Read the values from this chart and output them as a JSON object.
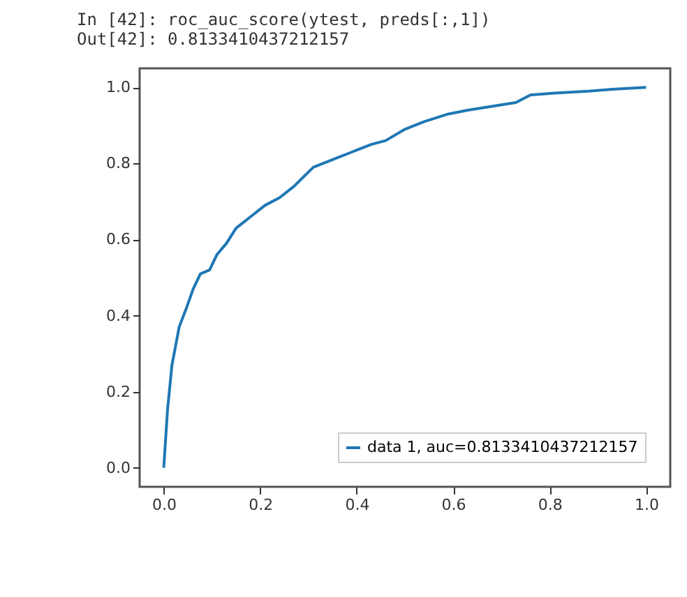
{
  "chart_data": {
    "type": "line",
    "annotations": [
      "In [42]: roc_auc_score(ytest, preds[:,1])",
      "Out[42]: 0.8133410437212157"
    ],
    "series": [
      {
        "name": "data 1, auc=0.8133410437212157",
        "color": "#1f77b4",
        "x": [
          0,
          0.008,
          0.017,
          0.032,
          0.047,
          0.061,
          0.076,
          0.095,
          0.11,
          0.13,
          0.15,
          0.18,
          0.21,
          0.24,
          0.27,
          0.31,
          0.35,
          0.39,
          0.43,
          0.46,
          0.5,
          0.54,
          0.59,
          0.63,
          0.68,
          0.73,
          0.76,
          0.81,
          0.88,
          0.93,
          1.0
        ],
        "values": [
          0,
          0.155,
          0.27,
          0.37,
          0.42,
          0.47,
          0.51,
          0.52,
          0.56,
          0.59,
          0.63,
          0.66,
          0.69,
          0.71,
          0.74,
          0.79,
          0.81,
          0.83,
          0.85,
          0.86,
          0.89,
          0.91,
          0.93,
          0.94,
          0.95,
          0.96,
          0.98,
          0.985,
          0.99,
          0.995,
          1.0
        ]
      }
    ],
    "xlim": [
      -0.05,
      1.05
    ],
    "ylim": [
      -0.05,
      1.05
    ],
    "xticks": [
      {
        "value": 0,
        "label": "0.0"
      },
      {
        "value": 0.2,
        "label": "0.2"
      },
      {
        "value": 0.4,
        "label": "0.4"
      },
      {
        "value": 0.6,
        "label": "0.6"
      },
      {
        "value": 0.8,
        "label": "0.8"
      },
      {
        "value": 1,
        "label": "1.0"
      }
    ],
    "yticks": [
      {
        "value": 0,
        "label": "0.0"
      },
      {
        "value": 0.2,
        "label": "0.2"
      },
      {
        "value": 0.4,
        "label": "0.4"
      },
      {
        "value": 0.6,
        "label": "0.6"
      },
      {
        "value": 0.8,
        "label": "0.8"
      },
      {
        "value": 1,
        "label": "1.0"
      }
    ],
    "legend": "bottom right",
    "grid": false,
    "marker": "none",
    "line_style": "solid"
  }
}
